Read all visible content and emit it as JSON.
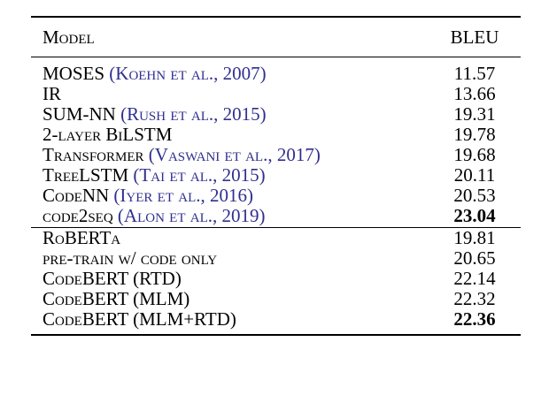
{
  "table": {
    "header": {
      "model": "Model",
      "bleu": "BLEU"
    },
    "group1": [
      {
        "model": "MOSES",
        "cite": "(Koehn et al., 2007)",
        "bleu": "11.57",
        "bold": false
      },
      {
        "model": "IR",
        "cite": "",
        "bleu": "13.66",
        "bold": false
      },
      {
        "model": "SUM-NN",
        "cite": "(Rush et al., 2015)",
        "bleu": "19.31",
        "bold": false
      },
      {
        "model": "2-layer BiLSTM",
        "cite": "",
        "bleu": "19.78",
        "bold": false
      },
      {
        "model": "Transformer",
        "cite": "(Vaswani et al., 2017)",
        "bleu": "19.68",
        "bold": false
      },
      {
        "model": "TreeLSTM",
        "cite": "(Tai et al., 2015)",
        "bleu": "20.11",
        "bold": false
      },
      {
        "model": "CodeNN",
        "cite": "(Iyer et al., 2016)",
        "bleu": "20.53",
        "bold": false
      },
      {
        "model": "code2seq",
        "cite": "(Alon et al., 2019)",
        "bleu": "23.04",
        "bold": true
      }
    ],
    "group2": [
      {
        "model": "RoBERTa",
        "cite": "",
        "bleu": "19.81",
        "bold": false
      },
      {
        "model": "pre-train w/ code only",
        "cite": "",
        "bleu": "20.65",
        "bold": false
      },
      {
        "model": "CodeBERT (RTD)",
        "cite": "",
        "bleu": "22.14",
        "bold": false
      },
      {
        "model": "CodeBERT (MLM)",
        "cite": "",
        "bleu": "22.32",
        "bold": false
      },
      {
        "model": "CodeBERT (MLM+RTD)",
        "cite": "",
        "bleu": "22.36",
        "bold": true
      }
    ]
  }
}
